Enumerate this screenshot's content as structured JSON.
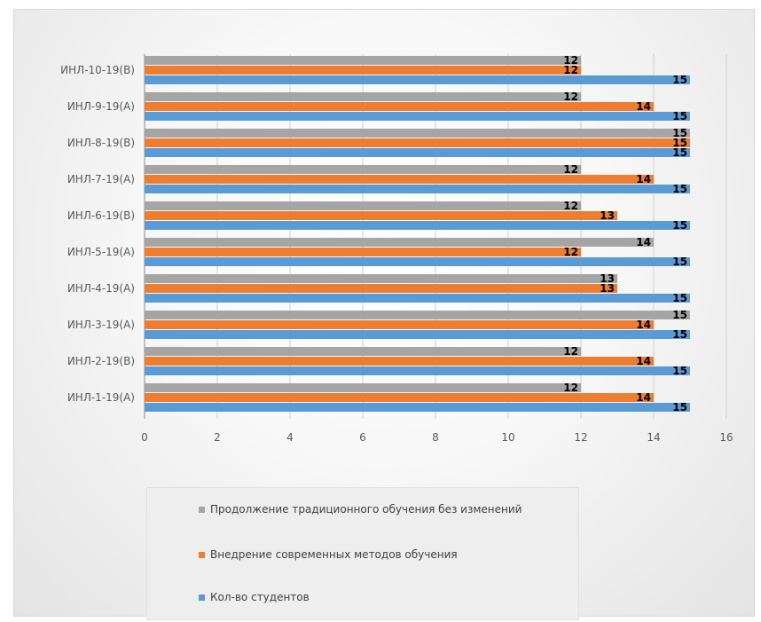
{
  "chart_data": {
    "type": "bar",
    "orientation": "horizontal",
    "categories": [
      "ИНЛ-10-19(B)",
      "ИНЛ-9-19(A)",
      "ИНЛ-8-19(B)",
      "ИНЛ-7-19(A)",
      "ИНЛ-6-19(B)",
      "ИНЛ-5-19(A)",
      "ИНЛ-4-19(A)",
      "ИНЛ-3-19(A)",
      "ИНЛ-2-19(B)",
      "ИНЛ-1-19(A)"
    ],
    "series": [
      {
        "name": "Продолжение традиционного обучения без изменений",
        "color": "#a5a5a5",
        "values": [
          12,
          12,
          15,
          12,
          12,
          14,
          13,
          15,
          12,
          12
        ]
      },
      {
        "name": "Внедрение современных методов обучения",
        "color": "#ed7d31",
        "values": [
          12,
          14,
          15,
          14,
          13,
          12,
          13,
          14,
          14,
          14
        ]
      },
      {
        "name": "Кол-во студентов",
        "color": "#5b9bd5",
        "values": [
          15,
          15,
          15,
          15,
          15,
          15,
          15,
          15,
          15,
          15
        ]
      }
    ],
    "xlim": [
      0,
      16
    ],
    "xticks": [
      "0",
      "2",
      "4",
      "6",
      "8",
      "10",
      "12",
      "14",
      "16"
    ],
    "grid": true,
    "data_labels": true,
    "legend_position": "bottom"
  }
}
